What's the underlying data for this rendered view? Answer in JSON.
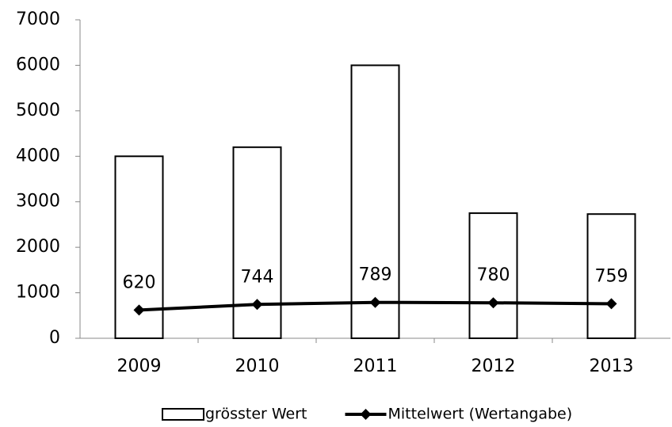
{
  "chart_data": {
    "type": "bar",
    "categories": [
      "2009",
      "2010",
      "2011",
      "2012",
      "2013"
    ],
    "series": [
      {
        "name": "grösster Wert",
        "type": "bar",
        "color": "#ffffff",
        "values": [
          4000,
          4200,
          6000,
          2750,
          2730
        ]
      },
      {
        "name": "Mittelwert (Wertangabe)",
        "type": "line",
        "color": "#000000",
        "values": [
          620,
          744,
          789,
          780,
          759
        ]
      }
    ],
    "ylim": [
      0,
      7000
    ],
    "yticks": [
      0,
      1000,
      2000,
      3000,
      4000,
      5000,
      6000,
      7000
    ],
    "grid": false,
    "legend": "bottom"
  }
}
